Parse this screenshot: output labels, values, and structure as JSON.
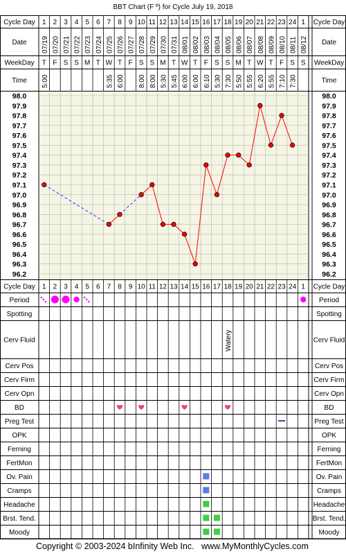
{
  "title": "BBT Chart (F º) for Cycle July 19, 2018",
  "footer": {
    "copyright": "Copyright © 2003-2024 bInfinity Web Inc.",
    "site": "www.MyMonthlyCycles.com"
  },
  "row_labels": {
    "cycle_day": "Cycle Day",
    "date": "Date",
    "weekday": "WeekDay",
    "time": "Time",
    "period": "Period",
    "spotting": "Spotting",
    "cerv_fluid": "Cerv Fluid",
    "cerv_pos": "Cerv Pos",
    "cerv_firm": "Cerv Firm",
    "cerv_opn": "Cerv Opn",
    "bd": "BD",
    "preg_test": "Preg Test",
    "opk": "OPK",
    "ferning": "Ferning",
    "fertmon": "FertMon",
    "ov_pain": "Ov. Pain",
    "cramps": "Cramps",
    "headache": "Headache",
    "brst_tend": "Brst. Tend.",
    "moody": "Moody"
  },
  "cycle_days": [
    "1",
    "2",
    "3",
    "4",
    "5",
    "6",
    "7",
    "8",
    "9",
    "10",
    "11",
    "12",
    "13",
    "14",
    "15",
    "16",
    "17",
    "18",
    "19",
    "20",
    "21",
    "22",
    "23",
    "24",
    "1"
  ],
  "dates": [
    "07/19",
    "07/20",
    "07/21",
    "07/22",
    "07/23",
    "07/24",
    "07/25",
    "07/26",
    "07/27",
    "07/28",
    "07/29",
    "07/30",
    "07/31",
    "08/01",
    "08/02",
    "08/03",
    "08/04",
    "08/05",
    "08/06",
    "08/07",
    "08/08",
    "08/09",
    "08/10",
    "08/11",
    "08/12"
  ],
  "weekdays": [
    "T",
    "F",
    "S",
    "S",
    "M",
    "T",
    "W",
    "T",
    "F",
    "S",
    "S",
    "M",
    "T",
    "W",
    "T",
    "F",
    "S",
    "S",
    "M",
    "T",
    "W",
    "T",
    "F",
    "S",
    "S"
  ],
  "times": [
    "5:00",
    "",
    "",
    "",
    "",
    "",
    "5:35",
    "6:00",
    "",
    "8:00",
    "8:00",
    "5:30",
    "5:45",
    "6:00",
    "6:00",
    "6:10",
    "5:30",
    "7:30",
    "5:50",
    "5:55",
    "6:20",
    "5:55",
    "7:10",
    "7:30",
    ""
  ],
  "cerv_fluid_text": [
    "",
    "",
    "",
    "",
    "",
    "",
    "",
    "",
    "",
    "",
    "",
    "",
    "",
    "",
    "",
    "",
    "",
    "Watery",
    "",
    "",
    "",
    "",
    "",
    "",
    ""
  ],
  "colors": {
    "grid_bg": "#f5f5e6",
    "temp_line": "#ff0000",
    "gap_line": "#3333ff",
    "marker": "#ff0000",
    "period": "#ff00ff",
    "heart": "#e8408a",
    "ov_pain_box": "#5a7ee0",
    "symptom_box": "#44cc44",
    "preg_dash": "#663399"
  },
  "chart_data": {
    "type": "line",
    "title": "BBT Chart (F º) for Cycle July 19, 2018",
    "xlabel": "Cycle Day",
    "ylabel": "",
    "ylim": [
      96.2,
      98.0
    ],
    "y_ticks": [
      "98.0",
      "97.9",
      "97.8",
      "97.7",
      "97.6",
      "97.5",
      "97.4",
      "97.3",
      "97.2",
      "97.1",
      "97.0",
      "96.9",
      "96.8",
      "96.7",
      "96.6",
      "96.5",
      "96.4",
      "96.3",
      "96.2"
    ],
    "grid": true,
    "categories": [
      "1",
      "2",
      "3",
      "4",
      "5",
      "6",
      "7",
      "8",
      "9",
      "10",
      "11",
      "12",
      "13",
      "14",
      "15",
      "16",
      "17",
      "18",
      "19",
      "20",
      "21",
      "22",
      "23",
      "24",
      "1"
    ],
    "series": [
      {
        "values": [
          97.1,
          null,
          null,
          null,
          null,
          null,
          96.7,
          96.8,
          null,
          97.0,
          97.1,
          96.7,
          96.7,
          96.6,
          96.3,
          97.3,
          97.0,
          97.4,
          97.4,
          97.3,
          97.9,
          97.5,
          97.8,
          97.5,
          null
        ]
      }
    ]
  },
  "markers": {
    "period": [
      "spot",
      "heavy",
      "heavy",
      "medium",
      "spot",
      "",
      "",
      "",
      "",
      "",
      "",
      "",
      "",
      "",
      "",
      "",
      "",
      "",
      "",
      "",
      "",
      "",
      "",
      "",
      "medium"
    ],
    "bd": [
      8,
      10,
      14,
      18
    ],
    "preg_test_negative": [
      23
    ],
    "ov_pain": [
      16
    ],
    "cramps": [
      16
    ],
    "headache": [
      16
    ],
    "brst_tend": [
      16,
      17
    ],
    "moody": [
      16,
      17
    ]
  }
}
